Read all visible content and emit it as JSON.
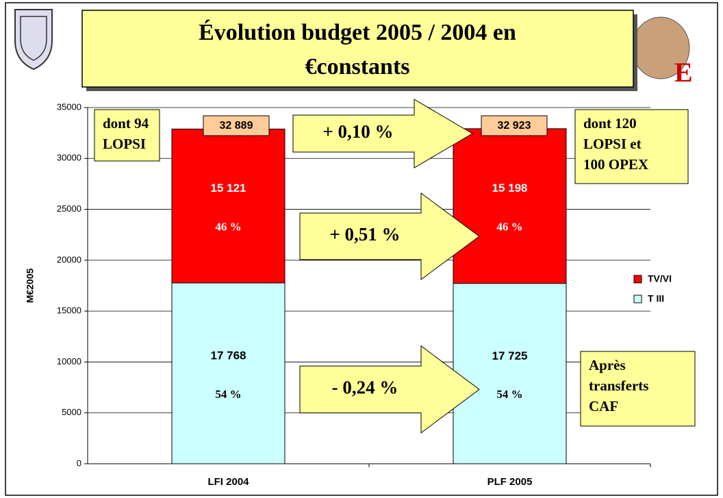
{
  "chart_data": {
    "type": "stacked_bar",
    "title": [
      "Évolution budget 2005 / 2004 en",
      "€constants"
    ],
    "ylabel": "M€2005",
    "categories": [
      "LFI 2004",
      "PLF 2005"
    ],
    "series": [
      {
        "name": "T III",
        "color": "#ccffff",
        "values": [
          17768,
          17725
        ],
        "value_labels": [
          "17 768",
          "17 725"
        ],
        "share_labels": [
          "54 %",
          "54 %"
        ],
        "label_color": "#000000"
      },
      {
        "name": "TV/VI",
        "color": "#ff0000",
        "values": [
          15121,
          15198
        ],
        "value_labels": [
          "15 121",
          "15 198"
        ],
        "share_labels": [
          "46 %",
          "46 %"
        ],
        "label_color": "#ffffff"
      }
    ],
    "total_labels": [
      "32 889",
      "32 923"
    ],
    "change_labels": [
      "+ 0,10 %",
      "+ 0,51 %",
      "- 0,24 %"
    ],
    "notes": [
      [
        "dont 94",
        "LOPSI"
      ],
      [
        "dont 120",
        "LOPSI et",
        "100 OPEX"
      ],
      [
        "Après",
        "transferts",
        "CAF"
      ]
    ],
    "ylim": [
      0,
      35000
    ],
    "yticks": [
      0,
      5000,
      10000,
      15000,
      20000,
      25000,
      30000,
      35000
    ],
    "grid": true,
    "legend": "right"
  }
}
